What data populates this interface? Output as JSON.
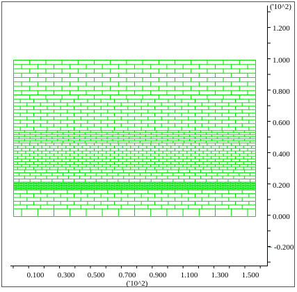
{
  "x_axis": {
    "tick_labels": [
      "0.100",
      "0.300",
      "0.500",
      "0.700",
      "0.900",
      "1.100",
      "1.300",
      "1.500"
    ],
    "scale_label": "('10^2)"
  },
  "y_axis": {
    "tick_labels": [
      "1.200",
      "1.000",
      "0.800",
      "0.600",
      "0.400",
      "0.200",
      "0.000",
      "-0.200"
    ],
    "scale_label": "('10^2)"
  },
  "colors": {
    "mesh": "#00e000",
    "marker": "#00c000",
    "axis": "#000000",
    "border": "#555555"
  }
}
